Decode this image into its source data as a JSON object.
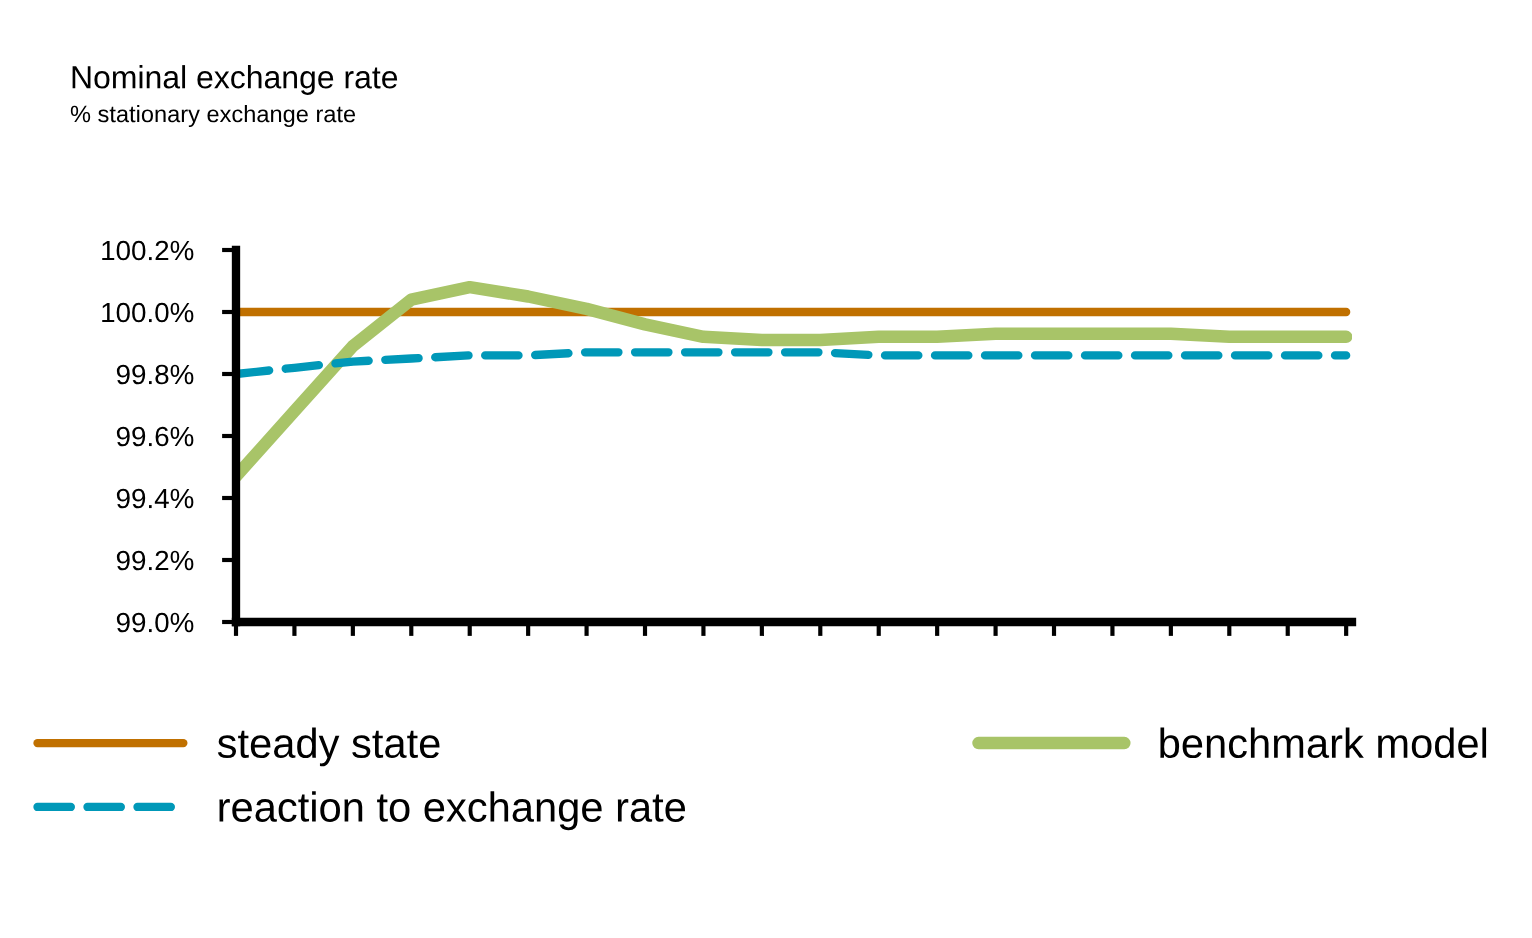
{
  "chart_data": {
    "type": "line",
    "title": "Nominal exchange rate",
    "subtitle": "% stationary exchange rate",
    "categories": [
      null,
      null,
      null,
      null,
      null,
      null,
      null,
      null,
      null,
      null,
      null,
      null,
      null,
      null,
      null,
      null,
      null,
      null,
      null,
      null
    ],
    "series": [
      {
        "name": "steady state",
        "color": "#c07000",
        "line_style": "solid",
        "values": [
          100.0,
          100.0,
          100.0,
          100.0,
          100.0,
          100.0,
          100.0,
          100.0,
          100.0,
          100.0,
          100.0,
          100.0,
          100.0,
          100.0,
          100.0,
          100.0,
          100.0,
          100.0,
          100.0,
          100.0
        ]
      },
      {
        "name": "benchmark model",
        "color": "#a8c468",
        "line_style": "solid",
        "values": [
          99.47,
          99.68,
          99.89,
          100.04,
          100.08,
          100.05,
          100.01,
          99.96,
          99.92,
          99.91,
          99.91,
          99.92,
          99.92,
          99.93,
          99.93,
          99.93,
          99.93,
          99.92,
          99.92,
          99.92
        ]
      },
      {
        "name": "reaction to exchange rate",
        "color": "#0098b8",
        "line_style": "dashed",
        "values": [
          99.8,
          99.82,
          99.84,
          99.85,
          99.86,
          99.86,
          99.87,
          99.87,
          99.87,
          99.87,
          99.87,
          99.86,
          99.86,
          99.86,
          99.86,
          99.86,
          99.86,
          99.86,
          99.86,
          99.86
        ]
      }
    ],
    "ylim": [
      99.0,
      100.2
    ],
    "yticks": [
      {
        "value": 99.0,
        "label": "99.0%"
      },
      {
        "value": 99.2,
        "label": "99.2%"
      },
      {
        "value": 99.4,
        "label": "99.4%"
      },
      {
        "value": 99.6,
        "label": "99.6%"
      },
      {
        "value": 99.8,
        "label": "99.8%"
      },
      {
        "value": 100.0,
        "label": "100.0%"
      },
      {
        "value": 100.2,
        "label": "100.2%"
      }
    ],
    "tick_labels": "y",
    "grid": false,
    "legend": "bottom",
    "marker": "none"
  }
}
